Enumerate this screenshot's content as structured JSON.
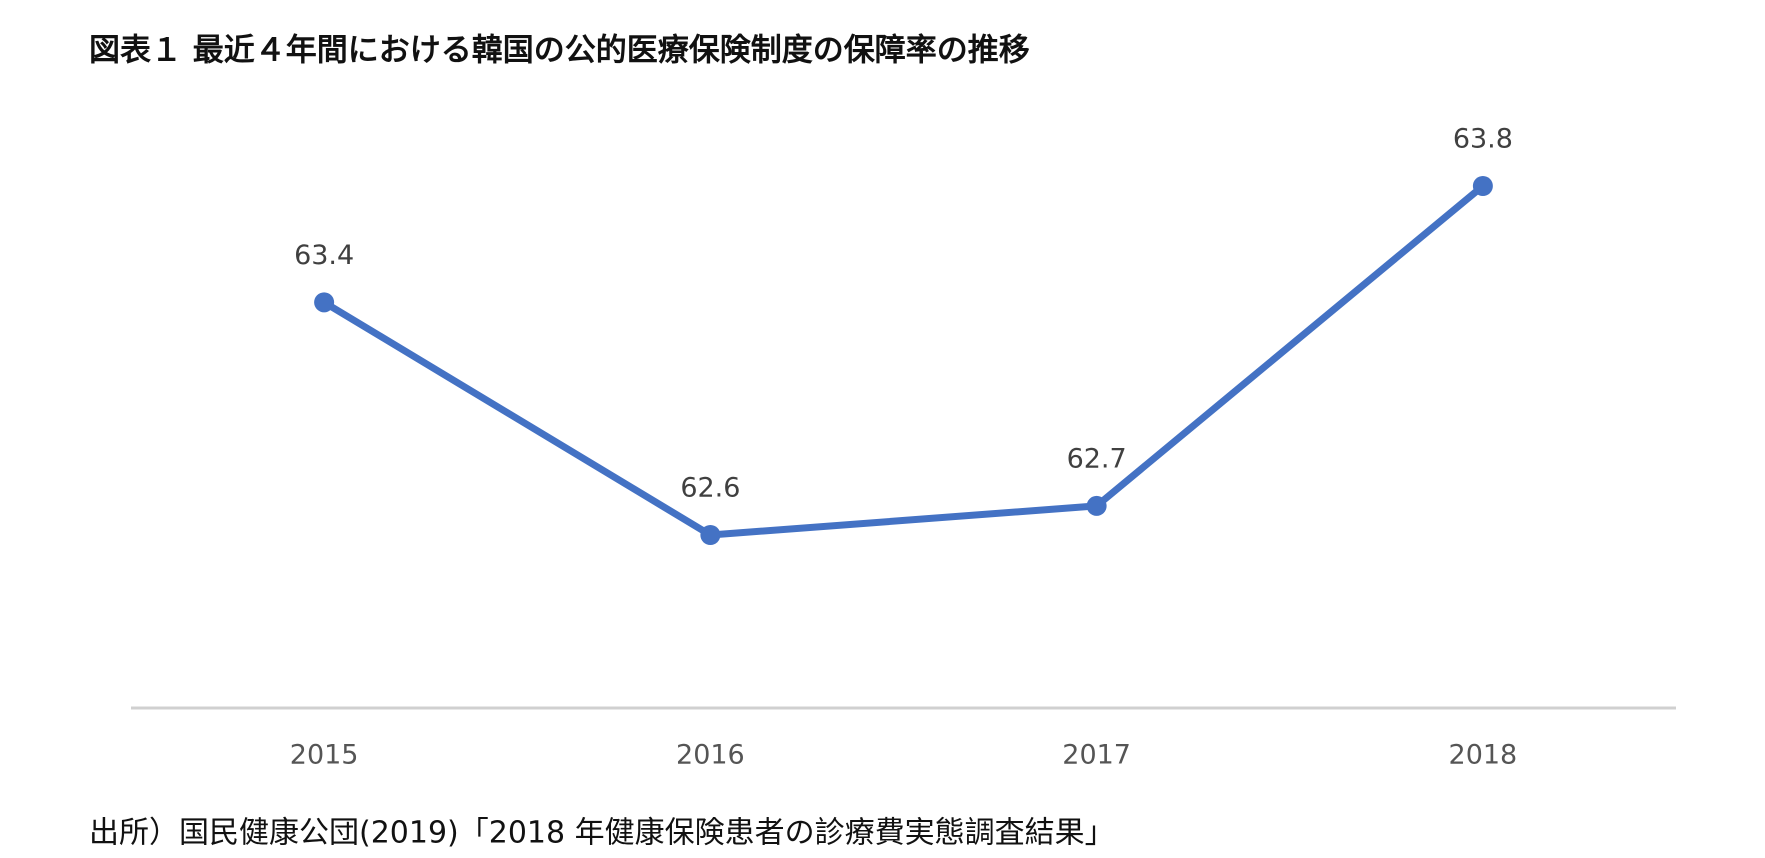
{
  "chart_data": {
    "type": "line",
    "title": "図表１ 最近４年間における韓国の公的医療保険制度の保障率の推移",
    "categories": [
      "2015",
      "2016",
      "2017",
      "2018"
    ],
    "series": [
      {
        "name": "保障率",
        "color": "#4472c4",
        "values": [
          63.4,
          62.6,
          62.7,
          63.8
        ]
      }
    ],
    "source": "出所）国民健康公団(2019)「2018 年健康保険患者の診療費実態調査結果」"
  }
}
